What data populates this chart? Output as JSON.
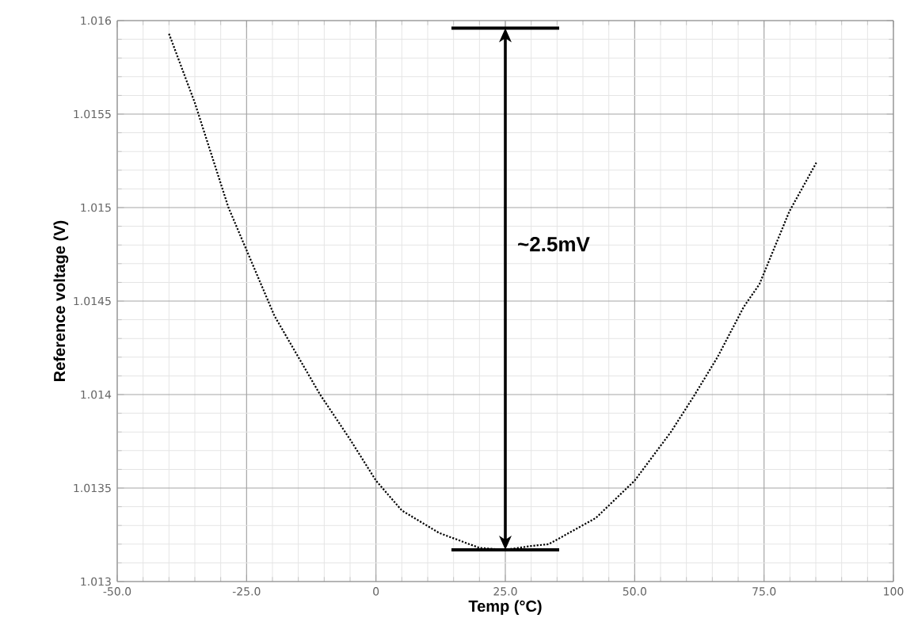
{
  "chart_data": {
    "type": "line",
    "xlabel": "Temp (°C)",
    "ylabel": "Reference voltage (V)",
    "annotations": [
      "~2.5mV"
    ],
    "xlim": [
      -50,
      100
    ],
    "ylim": [
      1.013,
      1.016
    ],
    "xticks": [
      {
        "value": -50,
        "label": "-50.0"
      },
      {
        "value": -25,
        "label": "-25.0"
      },
      0,
      {
        "value": 25,
        "label": "25.0"
      },
      {
        "value": 50,
        "label": "50.0"
      },
      {
        "value": 75,
        "label": "75.0"
      },
      100
    ],
    "yticks": [
      1.013,
      1.0135,
      1.014,
      1.0145,
      1.015,
      1.0155,
      1.016
    ],
    "grid": true,
    "line_style": "dotted",
    "marker": "none",
    "series": [
      {
        "color": "#000000",
        "x": [
          -40,
          -35,
          -28.5,
          -19.6,
          -10.8,
          -5,
          0,
          5,
          12.2,
          20,
          25,
          30,
          33.4,
          42.5,
          50,
          57,
          61.4,
          66,
          71.1,
          74.1,
          79.9,
          85.1
        ],
        "values": [
          1.01593,
          1.01556,
          1.015,
          1.01442,
          1.014,
          1.01376,
          1.01354,
          1.01338,
          1.01326,
          1.01318,
          1.01317,
          1.01319,
          1.0132,
          1.01334,
          1.01354,
          1.0138,
          1.01399,
          1.0142,
          1.01447,
          1.01459,
          1.01498,
          1.01524
        ]
      }
    ]
  }
}
